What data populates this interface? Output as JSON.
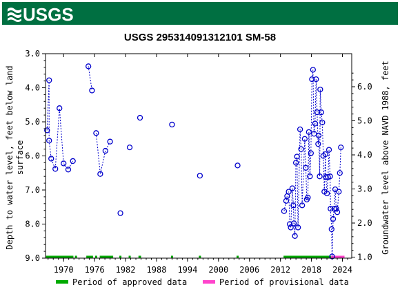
{
  "header": {
    "logo_text": "USGS",
    "background_color": "#006f41"
  },
  "chart_data": {
    "type": "scatter",
    "title": "USGS 295314091312101 SM-58",
    "ylabel_left": [
      "Depth to water level, feet below land",
      "surface"
    ],
    "ylabel_right": "Groundwater level above NAVD 1988, feet",
    "x_range": [
      1966.5,
      2025.8
    ],
    "ylim_left": [
      9.0,
      3.0
    ],
    "ylim_right_offset": 9.97,
    "x_ticks": [
      1970,
      1976,
      1982,
      1988,
      1994,
      2000,
      2006,
      2012,
      2018,
      2024
    ],
    "y_ticks_left": [
      "3.0",
      "4.0",
      "5.0",
      "6.0",
      "7.0",
      "8.0",
      "9.0"
    ],
    "y_ticks_right": [
      "1.0",
      "2.0",
      "3.0",
      "4.0",
      "5.0",
      "6.0"
    ],
    "series_color": "#0000cc",
    "approved_color": "#00aa00",
    "provisional_color": "#ff44cc",
    "legend": {
      "approved": "Period of approved data",
      "provisional": "Period of provisional data"
    },
    "segments": [
      [
        [
          1966.8,
          5.25
        ],
        [
          1967.2,
          3.78
        ],
        [
          1967.2,
          5.55
        ],
        [
          1967.6,
          6.08
        ],
        [
          1968.4,
          6.38
        ],
        [
          1969.2,
          4.6
        ],
        [
          1970.0,
          6.22
        ],
        [
          1970.9,
          6.4
        ],
        [
          1971.8,
          6.15
        ]
      ],
      [
        [
          1974.8,
          3.37
        ],
        [
          1975.5,
          4.08
        ]
      ],
      [
        [
          1976.3,
          5.33
        ],
        [
          1977.1,
          6.53
        ],
        [
          1978.1,
          5.85
        ],
        [
          1979.0,
          5.58
        ]
      ],
      [
        [
          1981.0,
          7.68
        ]
      ],
      [
        [
          1982.8,
          5.75
        ]
      ],
      [
        [
          1984.8,
          4.88
        ]
      ],
      [
        [
          1991.0,
          5.08
        ]
      ],
      [
        [
          1996.4,
          6.58
        ]
      ],
      [
        [
          2003.7,
          6.28
        ]
      ],
      [
        [
          2012.7,
          7.62
        ],
        [
          2013.1,
          7.32
        ],
        [
          2013.3,
          7.18
        ],
        [
          2013.6,
          7.05
        ],
        [
          2013.8,
          8.0
        ],
        [
          2014.0,
          8.1
        ],
        [
          2014.3,
          6.95
        ],
        [
          2014.5,
          7.45
        ],
        [
          2014.6,
          7.98
        ],
        [
          2014.8,
          8.35
        ],
        [
          2015.0,
          6.2
        ],
        [
          2015.2,
          6.02
        ],
        [
          2015.4,
          8.1
        ],
        [
          2015.8,
          5.22
        ],
        [
          2016.0,
          5.8
        ],
        [
          2016.2,
          7.45
        ],
        [
          2016.7,
          5.5
        ],
        [
          2016.9,
          6.35
        ],
        [
          2017.1,
          7.28
        ],
        [
          2017.3,
          7.22
        ],
        [
          2017.5,
          5.3
        ],
        [
          2017.7,
          6.6
        ],
        [
          2017.9,
          5.92
        ],
        [
          2018.1,
          3.75
        ],
        [
          2018.3,
          3.47
        ],
        [
          2018.5,
          5.35
        ],
        [
          2018.7,
          5.05
        ],
        [
          2018.9,
          3.75
        ],
        [
          2019.1,
          4.72
        ],
        [
          2019.3,
          5.65
        ],
        [
          2019.4,
          5.4
        ],
        [
          2019.6,
          6.6
        ],
        [
          2019.7,
          4.05
        ],
        [
          2019.9,
          4.72
        ],
        [
          2020.1,
          5.02
        ],
        [
          2020.3,
          6.0
        ],
        [
          2020.5,
          7.05
        ],
        [
          2020.7,
          5.95
        ],
        [
          2020.8,
          6.62
        ],
        [
          2021.0,
          7.1
        ],
        [
          2021.2,
          6.62
        ],
        [
          2021.4,
          5.82
        ],
        [
          2021.6,
          6.6
        ],
        [
          2021.7,
          7.55
        ],
        [
          2021.9,
          8.15
        ],
        [
          2022.0,
          8.95
        ],
        [
          2022.2,
          7.85
        ],
        [
          2022.4,
          7.55
        ],
        [
          2022.6,
          6.98
        ],
        [
          2022.8,
          7.55
        ],
        [
          2023.0,
          7.65
        ],
        [
          2023.3,
          7.05
        ],
        [
          2023.5,
          6.5
        ],
        [
          2023.7,
          5.75
        ]
      ]
    ],
    "approved_periods": [
      [
        1966.6,
        1971.9
      ],
      [
        1972.2,
        1972.6
      ],
      [
        1974.4,
        1975.7
      ],
      [
        1976.1,
        1976.5
      ],
      [
        1977.0,
        1979.6
      ],
      [
        1980.8,
        1981.2
      ],
      [
        1982.6,
        1983.0
      ],
      [
        1984.5,
        1985.0
      ],
      [
        1990.8,
        1991.2
      ],
      [
        1996.2,
        1996.6
      ],
      [
        2003.5,
        2003.9
      ],
      [
        2012.6,
        2021.8
      ]
    ],
    "provisional_periods": [
      [
        2021.8,
        2024.4
      ]
    ]
  }
}
